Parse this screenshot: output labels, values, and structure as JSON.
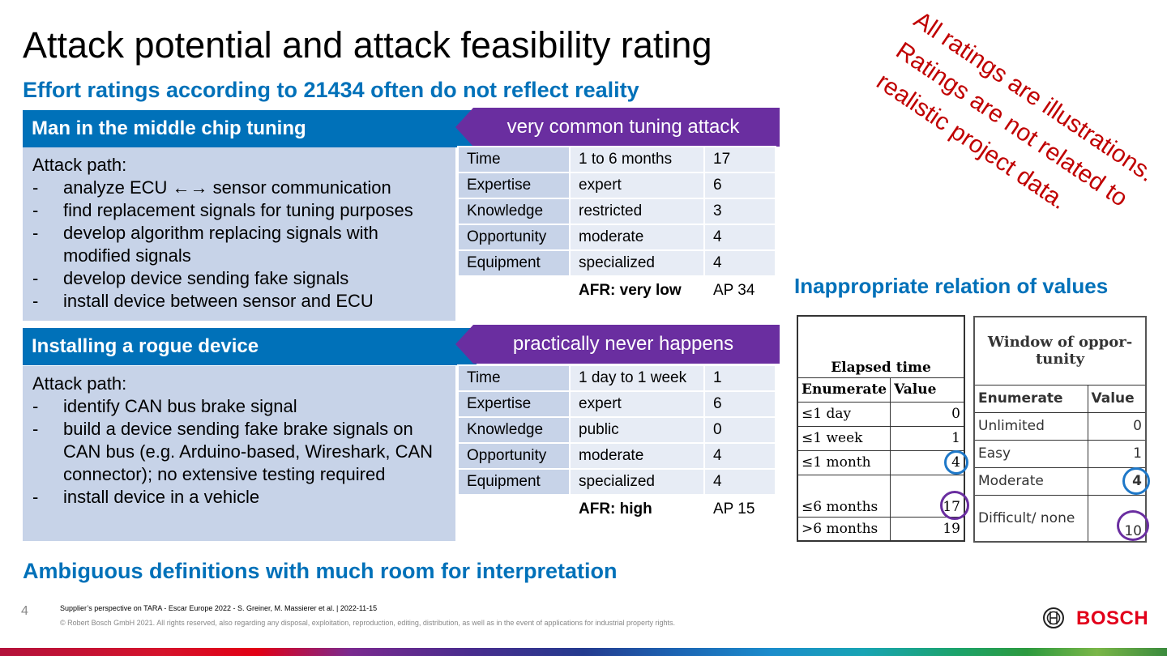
{
  "title": "Attack potential and attack feasibility rating",
  "subheadline": "Effort ratings according to 21434 often do not reflect reality",
  "bottom_headline": "Ambiguous definitions with much room for interpretation",
  "side_note": [
    "All ratings are illustrations.",
    "Ratings are not related to",
    "realistic project data."
  ],
  "right_headline": "Inappropriate relation of values",
  "scenarios": [
    {
      "name": "Man in the middle chip tuning",
      "tag": "very common tuning attack",
      "path_label": "Attack path:",
      "steps": [
        "analyze ECU ←→ sensor communication",
        "find replacement signals for tuning purposes",
        "develop algorithm replacing signals with modified signals",
        "develop device sending fake signals",
        "install device between sensor and ECU"
      ],
      "rows": [
        {
          "label": "Time",
          "value": "1 to 6 months",
          "num": "17"
        },
        {
          "label": "Expertise",
          "value": "expert",
          "num": "6"
        },
        {
          "label": "Knowledge",
          "value": "restricted",
          "num": "3"
        },
        {
          "label": "Opportunity",
          "value": "moderate",
          "num": "4"
        },
        {
          "label": "Equipment",
          "value": "specialized",
          "num": "4"
        }
      ],
      "afr": "AFR: very low",
      "ap": "AP 34"
    },
    {
      "name": "Installing a rogue device",
      "tag": "practically never happens",
      "path_label": "Attack path:",
      "steps": [
        "identify CAN bus brake signal",
        "build a device sending fake brake signals on CAN bus (e.g. Arduino-based, Wireshark, CAN connector); no extensive testing required",
        "install device in a vehicle"
      ],
      "rows": [
        {
          "label": "Time",
          "value": "1 day to 1 week",
          "num": "1"
        },
        {
          "label": "Expertise",
          "value": "expert",
          "num": "6"
        },
        {
          "label": "Knowledge",
          "value": "public",
          "num": "0"
        },
        {
          "label": "Opportunity",
          "value": "moderate",
          "num": "4"
        },
        {
          "label": "Equipment",
          "value": "specialized",
          "num": "4"
        }
      ],
      "afr": "AFR: high",
      "ap": "AP 15"
    }
  ],
  "elapsed_table": {
    "title": "Elapsed time",
    "headers": [
      "Enumerate",
      "Value"
    ],
    "rows": [
      [
        "≤1 day",
        "0"
      ],
      [
        "≤1 week",
        "1"
      ],
      [
        "≤1 month",
        "4"
      ],
      [
        "≤6 months",
        "17"
      ],
      [
        ">6 months",
        "19"
      ]
    ]
  },
  "window_table": {
    "title": "Window of oppor- tunity",
    "headers": [
      "Enumerate",
      "Value"
    ],
    "rows": [
      [
        "Unlimited",
        "0"
      ],
      [
        "Easy",
        "1"
      ],
      [
        "Moderate",
        "4"
      ],
      [
        "Difficult/ none",
        "10"
      ]
    ]
  },
  "footer": {
    "page": "4",
    "line1": "Supplier’s perspective on TARA - Escar Europe 2022 - S. Greiner, M. Massierer et al. | 2022-11-15",
    "line2": "© Robert Bosch GmbH 2021. All rights reserved, also regarding any disposal, exploitation, reproduction, editing, distribution, as well as in the event of applications for industrial property rights.",
    "brand": "BOSCH"
  },
  "colors": {
    "accent": "#0071b9",
    "tag": "#6a2ea0",
    "pathbg": "#c7d3e8",
    "note": "#c00000",
    "circle_blue": "#1f78c8",
    "circle_purple": "#6a2ea0"
  }
}
